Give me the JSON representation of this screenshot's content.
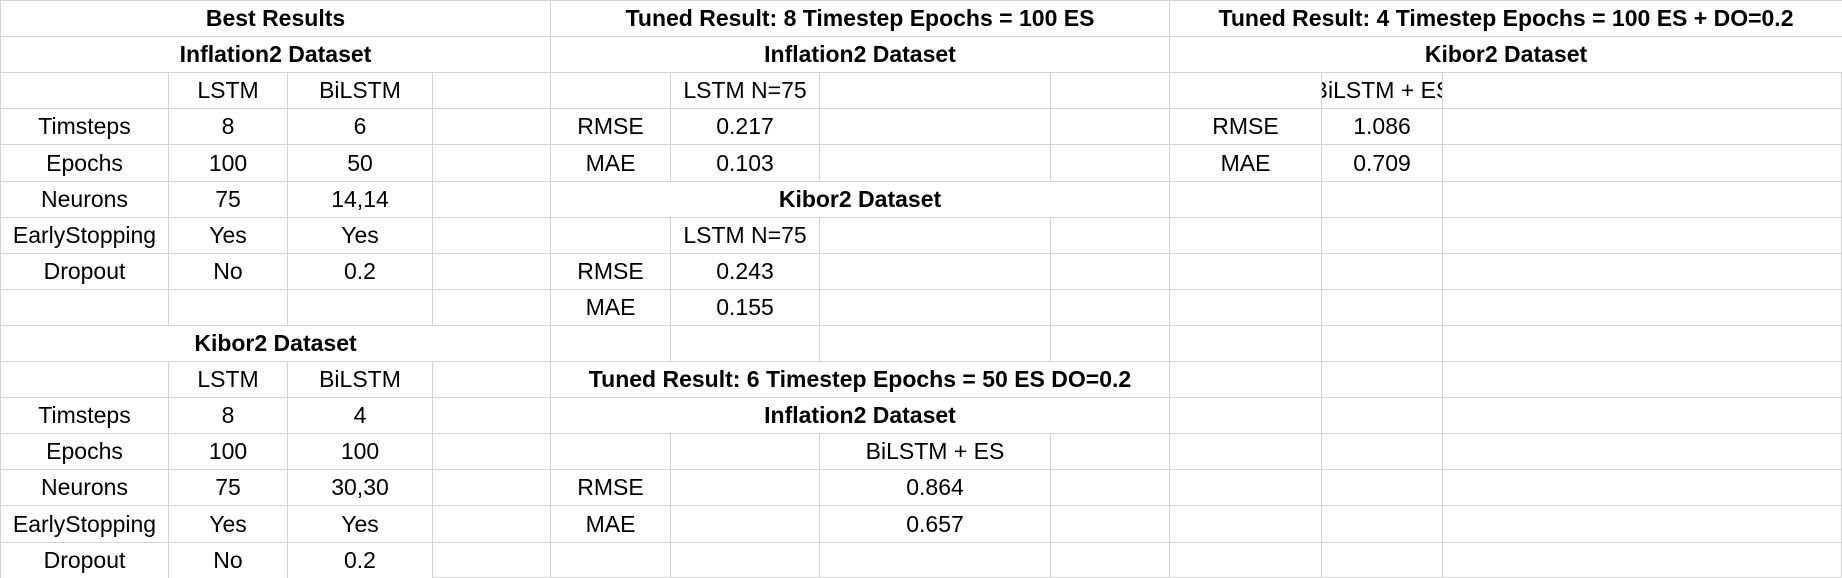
{
  "best_results": {
    "title": "Best Results",
    "inflation": {
      "title": "Inflation2 Dataset",
      "headers": [
        "LSTM",
        "BiLSTM"
      ],
      "rows": [
        {
          "label": "Timsteps",
          "lstm": "8",
          "bilstm": "6"
        },
        {
          "label": "Epochs",
          "lstm": "100",
          "bilstm": "50"
        },
        {
          "label": "Neurons",
          "lstm": "75",
          "bilstm": "14,14"
        },
        {
          "label": "EarlyStopping",
          "lstm": "Yes",
          "bilstm": "Yes"
        },
        {
          "label": "Dropout",
          "lstm": "No",
          "bilstm": "0.2"
        }
      ]
    },
    "kibor": {
      "title": "Kibor2 Dataset",
      "headers": [
        "LSTM",
        "BiLSTM"
      ],
      "rows": [
        {
          "label": "Timsteps",
          "lstm": "8",
          "bilstm": "4"
        },
        {
          "label": "Epochs",
          "lstm": "100",
          "bilstm": "100"
        },
        {
          "label": "Neurons",
          "lstm": "75",
          "bilstm": "30,30"
        },
        {
          "label": "EarlyStopping",
          "lstm": "Yes",
          "bilstm": "Yes"
        },
        {
          "label": "Dropout",
          "lstm": "No",
          "bilstm": "0.2"
        }
      ]
    }
  },
  "tuned_lstm": {
    "title": "Tuned Result: 8 Timestep Epochs = 100 ES",
    "inflation": {
      "title": "Inflation2 Dataset",
      "header": "LSTM N=75",
      "rows": [
        {
          "label": "RMSE",
          "value": "0.217"
        },
        {
          "label": "MAE",
          "value": "0.103"
        }
      ]
    },
    "kibor": {
      "title": "Kibor2 Dataset",
      "header": "LSTM N=75",
      "rows": [
        {
          "label": "RMSE",
          "value": "0.243"
        },
        {
          "label": "MAE",
          "value": "0.155"
        }
      ]
    }
  },
  "tuned_bilstm_inflation": {
    "title": "Tuned Result: 6 Timestep Epochs = 50 ES DO=0.2",
    "subtitle": "Inflation2 Dataset",
    "header": "BiLSTM + ES",
    "rows": [
      {
        "label": "RMSE",
        "value": "0.864"
      },
      {
        "label": "MAE",
        "value": "0.657"
      }
    ]
  },
  "tuned_bilstm_kibor": {
    "title": "Tuned Result: 4 Timestep Epochs = 100 ES + DO=0.2",
    "subtitle": "Kibor2 Dataset",
    "header": "BiLSTM + ES",
    "rows": [
      {
        "label": "RMSE",
        "value": "1.086"
      },
      {
        "label": "MAE",
        "value": "0.709"
      }
    ]
  }
}
